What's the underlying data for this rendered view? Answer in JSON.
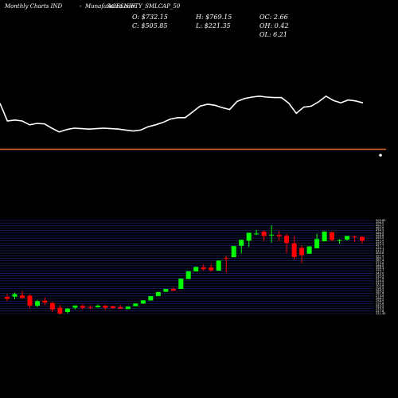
{
  "header": {
    "left_label": "Monthly Charts IND",
    "title": "MunafaSutra.com",
    "symbol": "AGESNIFTY_SMLCAP_50"
  },
  "stats": [
    {
      "label": "O:",
      "value": "$732.15"
    },
    {
      "label": "H:",
      "value": "$769.15"
    },
    {
      "label": "OC:",
      "value": "2.66"
    },
    {
      "label": "C:",
      "value": "$505.85"
    },
    {
      "label": "L:",
      "value": "$221.35"
    },
    {
      "label": "OH:",
      "value": "0.42"
    },
    {
      "label": "OL:",
      "value": "6.21"
    }
  ],
  "colors": {
    "background": "#000000",
    "line": "#ffffff",
    "separator": "#e06a2a",
    "bull": "#00ff00",
    "bear": "#ff0000",
    "grid": "#1e2a80",
    "axis_text": "#ffffff"
  },
  "chart_data": [
    {
      "type": "line",
      "series": [
        {
          "values": [
            0.92,
            0.55,
            0.57,
            0.55,
            0.47,
            0.5,
            0.49,
            0.4,
            0.32,
            0.37,
            0.4,
            0.39,
            0.38,
            0.39,
            0.4,
            0.39,
            0.38,
            0.36,
            0.34,
            0.36,
            0.43,
            0.47,
            0.52,
            0.59,
            0.62,
            0.62,
            0.74,
            0.86,
            0.9,
            0.88,
            0.83,
            0.79,
            0.96,
            1.02,
            1.05,
            1.07,
            1.05,
            1.04,
            1.04,
            0.92,
            0.71,
            0.84,
            0.86,
            0.95,
            1.07,
            0.98,
            0.93,
            0.99,
            0.97,
            0.93
          ]
        }
      ]
    },
    {
      "type": "candlestick",
      "y_ticks": [
        "505.85",
        "498.0",
        "490.5",
        "482.0",
        "474.3",
        "466.0",
        "458.6",
        "450.5",
        "443.0",
        "435.2",
        "427.7",
        "420.1",
        "412.3",
        "404.6",
        "397.0",
        "389.1",
        "381.4",
        "373.8",
        "366.0",
        "358.3",
        "350.7",
        "343.0",
        "335.4",
        "327.6",
        "320.0",
        "312.2",
        "304.6",
        "296.9",
        "289.3",
        "281.6",
        "273.9",
        "266.2",
        "258.5",
        "250.8",
        "243.2",
        "235.5",
        "227.8",
        "221.35"
      ],
      "candles": [
        {
          "o": 253.0,
          "h": 258.4,
          "l": 245.1,
          "c": 249.3
        },
        {
          "o": 253.5,
          "h": 261.4,
          "l": 248.6,
          "c": 258.4
        },
        {
          "o": 255.8,
          "h": 264.4,
          "l": 249.3,
          "c": 251.2
        },
        {
          "o": 255.4,
          "h": 257.9,
          "l": 231.8,
          "c": 236.7
        },
        {
          "o": 236.2,
          "h": 247.6,
          "l": 234.0,
          "c": 244.7
        },
        {
          "o": 246.1,
          "h": 252.5,
          "l": 237.2,
          "c": 242.4
        },
        {
          "o": 241.4,
          "h": 243.5,
          "l": 224.4,
          "c": 229.2
        },
        {
          "o": 232.7,
          "h": 237.8,
          "l": 219.6,
          "c": 221.4
        },
        {
          "o": 224.4,
          "h": 232.0,
          "l": 221.9,
          "c": 230.9
        },
        {
          "o": 232.7,
          "h": 236.8,
          "l": 229.6,
          "c": 236.8
        },
        {
          "o": 235.8,
          "h": 238.8,
          "l": 229.0,
          "c": 232.4
        },
        {
          "o": 233.8,
          "h": 237.2,
          "l": 229.9,
          "c": 232.7
        },
        {
          "o": 233.3,
          "h": 238.6,
          "l": 233.0,
          "c": 236.4
        },
        {
          "o": 236.4,
          "h": 238.2,
          "l": 228.4,
          "c": 232.2
        },
        {
          "o": 235.2,
          "h": 236.9,
          "l": 229.5,
          "c": 231.9
        },
        {
          "o": 233.8,
          "h": 237.9,
          "l": 231.0,
          "c": 231.0
        },
        {
          "o": 230.2,
          "h": 234.7,
          "l": 230.2,
          "c": 234.7
        },
        {
          "o": 235.4,
          "h": 240.6,
          "l": 235.4,
          "c": 240.6
        },
        {
          "o": 240.5,
          "h": 246.5,
          "l": 240.5,
          "c": 246.5
        },
        {
          "o": 246.4,
          "h": 254.4,
          "l": 246.4,
          "c": 254.4
        },
        {
          "o": 254.8,
          "h": 262.3,
          "l": 254.8,
          "c": 262.3
        },
        {
          "o": 262.7,
          "h": 268.2,
          "l": 262.7,
          "c": 268.2
        },
        {
          "o": 268.2,
          "h": 271.6,
          "l": 264.6,
          "c": 265.1
        },
        {
          "o": 268.1,
          "h": 287.8,
          "l": 268.1,
          "c": 287.8
        },
        {
          "o": 287.0,
          "h": 301.6,
          "l": 287.0,
          "c": 301.6
        },
        {
          "o": 301.5,
          "h": 310.0,
          "l": 301.5,
          "c": 310.0
        },
        {
          "o": 309.2,
          "h": 315.0,
          "l": 303.1,
          "c": 305.6
        },
        {
          "o": 308.7,
          "h": 315.4,
          "l": 300.7,
          "c": 303.6
        },
        {
          "o": 302.9,
          "h": 322.1,
          "l": 302.9,
          "c": 322.1
        },
        {
          "o": 326.7,
          "h": 330.0,
          "l": 299.1,
          "c": 326.0
        },
        {
          "o": 328.5,
          "h": 349.6,
          "l": 328.5,
          "c": 349.6
        },
        {
          "o": 350.0,
          "h": 361.3,
          "l": 335.3,
          "c": 361.3
        },
        {
          "o": 359.7,
          "h": 374.8,
          "l": 347.4,
          "c": 374.8
        },
        {
          "o": 373.0,
          "h": 380.4,
          "l": 370.5,
          "c": 373.3
        },
        {
          "o": 376.8,
          "h": 379.3,
          "l": 360.0,
          "c": 368.5
        },
        {
          "o": 369.7,
          "h": 389.0,
          "l": 355.8,
          "c": 371.1
        },
        {
          "o": 370.6,
          "h": 377.8,
          "l": 359.5,
          "c": 368.0
        },
        {
          "o": 368.9,
          "h": 372.6,
          "l": 335.8,
          "c": 355.5
        },
        {
          "o": 354.7,
          "h": 368.8,
          "l": 324.0,
          "c": 328.6
        },
        {
          "o": 346.1,
          "h": 351.2,
          "l": 317.5,
          "c": 332.4
        },
        {
          "o": 334.8,
          "h": 348.9,
          "l": 334.8,
          "c": 348.9
        },
        {
          "o": 345.1,
          "h": 372.6,
          "l": 345.1,
          "c": 362.8
        },
        {
          "o": 358.6,
          "h": 376.8,
          "l": 358.6,
          "c": 376.8
        },
        {
          "o": 375.5,
          "h": 377.1,
          "l": 358.8,
          "c": 361.2
        },
        {
          "o": 360.7,
          "h": 362.1,
          "l": 354.1,
          "c": 361.0
        },
        {
          "o": 361.8,
          "h": 368.6,
          "l": 359.5,
          "c": 368.6
        },
        {
          "o": 367.6,
          "h": 370.1,
          "l": 356.6,
          "c": 366.3
        },
        {
          "o": 367.0,
          "h": 367.4,
          "l": 354.0,
          "c": 359.6
        }
      ]
    }
  ]
}
